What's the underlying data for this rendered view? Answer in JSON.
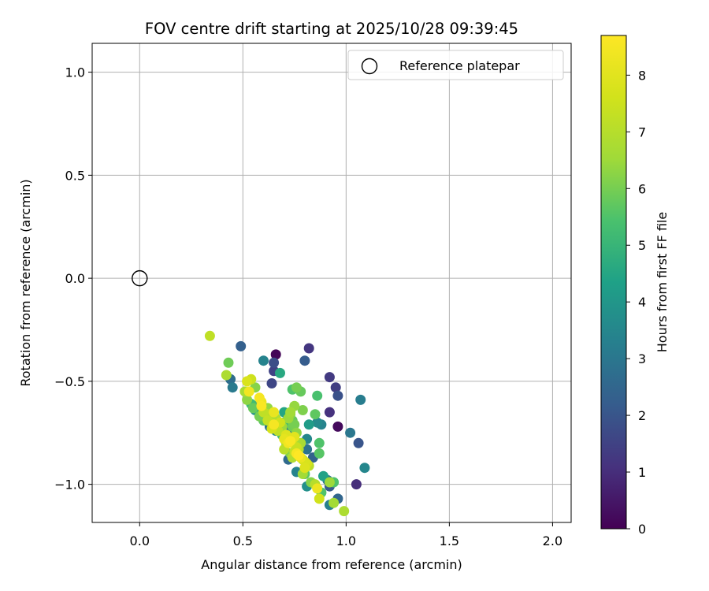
{
  "chart_data": {
    "type": "scatter",
    "title": "FOV centre drift starting at 2025/10/28 09:39:45",
    "xlabel": "Angular distance from reference (arcmin)",
    "ylabel": "Rotation from reference (arcmin)",
    "xlim": [
      -0.23,
      2.09
    ],
    "ylim": [
      -1.185,
      1.14
    ],
    "xticks": [
      0.0,
      0.5,
      1.0,
      1.5,
      2.0
    ],
    "xtick_labels": [
      "0.0",
      "0.5",
      "1.0",
      "1.5",
      "2.0"
    ],
    "yticks": [
      1.0,
      0.5,
      0.0,
      -0.5,
      -1.0
    ],
    "ytick_labels": [
      "1.0",
      "0.5",
      "0.0",
      "−0.5",
      "−1.0"
    ],
    "grid": true,
    "legend": {
      "position": "upper right",
      "entries": [
        "Reference platepar"
      ]
    },
    "reference_point": {
      "x": 0.0,
      "y": 0.0
    },
    "colorbar": {
      "label": "Hours from first FF file",
      "range": [
        0,
        8.7
      ],
      "ticks": [
        0,
        1,
        2,
        3,
        4,
        5,
        6,
        7,
        8
      ],
      "colormap": "viridis"
    },
    "points": [
      [
        0.66,
        -0.37,
        0.1
      ],
      [
        0.82,
        -0.34,
        1.2
      ],
      [
        0.49,
        -0.33,
        2.3
      ],
      [
        0.6,
        -0.4,
        3.4
      ],
      [
        0.65,
        -0.41,
        1.8
      ],
      [
        0.68,
        -0.46,
        4.6
      ],
      [
        0.65,
        -0.45,
        1.5
      ],
      [
        0.8,
        -0.4,
        2.2
      ],
      [
        0.43,
        -0.41,
        5.9
      ],
      [
        0.34,
        -0.28,
        7.2
      ],
      [
        0.42,
        -0.47,
        6.8
      ],
      [
        0.44,
        -0.49,
        2.7
      ],
      [
        0.45,
        -0.53,
        3.1
      ],
      [
        0.56,
        -0.53,
        6.2
      ],
      [
        0.64,
        -0.51,
        1.6
      ],
      [
        0.92,
        -0.48,
        1.3
      ],
      [
        0.95,
        -0.53,
        1.4
      ],
      [
        0.96,
        -0.57,
        1.9
      ],
      [
        0.92,
        -0.65,
        1.1
      ],
      [
        0.96,
        -0.72,
        0.2
      ],
      [
        1.07,
        -0.59,
        3.2
      ],
      [
        1.02,
        -0.75,
        3.0
      ],
      [
        1.06,
        -0.8,
        2.0
      ],
      [
        1.09,
        -0.92,
        3.5
      ],
      [
        1.05,
        -1.0,
        1.0
      ],
      [
        0.96,
        -1.07,
        2.5
      ],
      [
        0.92,
        -1.1,
        3.3
      ],
      [
        0.99,
        -1.13,
        6.8
      ],
      [
        0.94,
        -1.09,
        6.6
      ],
      [
        0.87,
        -1.07,
        7.6
      ],
      [
        0.86,
        -1.02,
        8.3
      ],
      [
        0.92,
        -1.01,
        2.1
      ],
      [
        0.91,
        -0.98,
        3.0
      ],
      [
        0.88,
        -1.04,
        5.5
      ],
      [
        0.81,
        -1.01,
        3.8
      ],
      [
        0.79,
        -0.95,
        6.6
      ],
      [
        0.76,
        -0.94,
        3.4
      ],
      [
        0.72,
        -0.88,
        2.6
      ],
      [
        0.74,
        -0.87,
        6.9
      ],
      [
        0.8,
        -0.89,
        7.8
      ],
      [
        0.84,
        -0.87,
        2.4
      ],
      [
        0.87,
        -0.85,
        5.6
      ],
      [
        0.87,
        -0.8,
        5.5
      ],
      [
        0.81,
        -0.83,
        2.9
      ],
      [
        0.81,
        -0.78,
        3.5
      ],
      [
        0.78,
        -0.55,
        5.8
      ],
      [
        0.76,
        -0.53,
        6.0
      ],
      [
        0.74,
        -0.54,
        5.5
      ],
      [
        0.86,
        -0.57,
        5.4
      ],
      [
        0.75,
        -0.62,
        6.4
      ],
      [
        0.79,
        -0.64,
        6.1
      ],
      [
        0.7,
        -0.65,
        4.5
      ],
      [
        0.73,
        -0.65,
        6.6
      ],
      [
        0.82,
        -0.71,
        4.2
      ],
      [
        0.86,
        -0.7,
        3.6
      ],
      [
        0.88,
        -0.71,
        3.4
      ],
      [
        0.85,
        -0.66,
        5.7
      ],
      [
        0.75,
        -0.71,
        6.0
      ],
      [
        0.72,
        -0.73,
        2.8
      ],
      [
        0.69,
        -0.74,
        4.9
      ],
      [
        0.66,
        -0.74,
        3.5
      ],
      [
        0.64,
        -0.7,
        6.7
      ],
      [
        0.62,
        -0.69,
        7.3
      ],
      [
        0.6,
        -0.69,
        5.7
      ],
      [
        0.58,
        -0.66,
        4.2
      ],
      [
        0.56,
        -0.64,
        3.8
      ],
      [
        0.54,
        -0.61,
        5.2
      ],
      [
        0.52,
        -0.59,
        6.3
      ],
      [
        0.51,
        -0.55,
        6.7
      ],
      [
        0.52,
        -0.5,
        7.8
      ],
      [
        0.53,
        -0.55,
        8.4
      ],
      [
        0.54,
        -0.49,
        7.5
      ],
      [
        0.58,
        -0.58,
        8.5
      ],
      [
        0.59,
        -0.6,
        8.3
      ],
      [
        0.59,
        -0.62,
        8.6
      ],
      [
        0.62,
        -0.66,
        7.0
      ],
      [
        0.65,
        -0.65,
        8.2
      ],
      [
        0.65,
        -0.71,
        8.5
      ],
      [
        0.64,
        -0.73,
        7.7
      ],
      [
        0.67,
        -0.74,
        7.2
      ],
      [
        0.69,
        -0.72,
        6.5
      ],
      [
        0.71,
        -0.76,
        7.9
      ],
      [
        0.7,
        -0.78,
        8.1
      ],
      [
        0.72,
        -0.8,
        8.4
      ],
      [
        0.73,
        -0.79,
        8.6
      ],
      [
        0.75,
        -0.77,
        8.0
      ],
      [
        0.74,
        -0.78,
        7.8
      ],
      [
        0.76,
        -0.82,
        7.4
      ],
      [
        0.77,
        -0.83,
        6.9
      ],
      [
        0.7,
        -0.83,
        7.1
      ],
      [
        0.73,
        -0.85,
        6.2
      ],
      [
        0.75,
        -0.84,
        7.3
      ],
      [
        0.76,
        -0.85,
        8.5
      ],
      [
        0.77,
        -0.86,
        8.7
      ],
      [
        0.78,
        -0.87,
        8.2
      ],
      [
        0.79,
        -0.88,
        6.4
      ],
      [
        0.81,
        -0.9,
        7.7
      ],
      [
        0.8,
        -0.92,
        7.9
      ],
      [
        0.82,
        -0.91,
        7.1
      ],
      [
        0.78,
        -0.8,
        6.7
      ],
      [
        0.76,
        -0.75,
        6.3
      ],
      [
        0.74,
        -0.72,
        5.9
      ],
      [
        0.72,
        -0.68,
        6.5
      ],
      [
        0.61,
        -0.64,
        4.8
      ],
      [
        0.57,
        -0.62,
        3.9
      ],
      [
        0.55,
        -0.63,
        5.8
      ],
      [
        0.58,
        -0.67,
        6.0
      ],
      [
        0.6,
        -0.65,
        7.2
      ],
      [
        0.66,
        -0.68,
        6.9
      ],
      [
        0.68,
        -0.7,
        7.6
      ],
      [
        0.63,
        -0.72,
        2.9
      ],
      [
        0.69,
        -0.76,
        5.3
      ],
      [
        0.71,
        -0.8,
        6.6
      ],
      [
        0.8,
        -0.95,
        5.6
      ],
      [
        0.83,
        -0.99,
        6.2
      ],
      [
        0.85,
        -1.0,
        7.0
      ],
      [
        0.89,
        -0.96,
        4.4
      ],
      [
        0.94,
        -0.99,
        5.5
      ],
      [
        0.92,
        -0.99,
        6.5
      ],
      [
        0.74,
        -0.69,
        5.8
      ],
      [
        0.73,
        -0.66,
        6.3
      ],
      [
        0.7,
        -0.7,
        5.1
      ],
      [
        0.62,
        -0.63,
        6.4
      ]
    ]
  }
}
